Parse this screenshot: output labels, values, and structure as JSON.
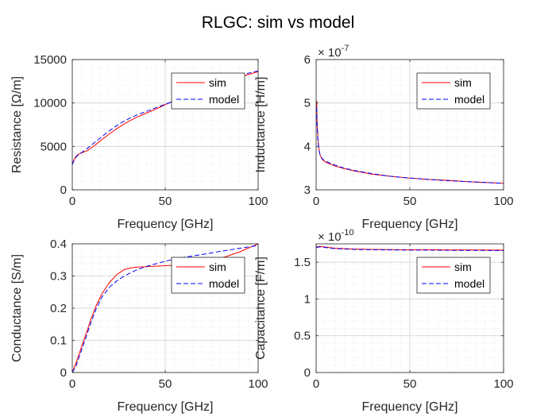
{
  "figure": {
    "title": "RLGC: sim vs model"
  },
  "colors": {
    "sim": "#ff0000",
    "model": "#0000ff",
    "grid": "#dfdfdf",
    "axis": "#262626"
  },
  "chart_data": [
    {
      "type": "line",
      "xlabel": "Frequency [GHz]",
      "ylabel": "Resistance [Ω/m]",
      "xlim": [
        0,
        100
      ],
      "ylim": [
        0,
        15000
      ],
      "xticks": [
        "0",
        "50",
        "100"
      ],
      "yticks": [
        "0",
        "5000",
        "10000",
        "15000"
      ],
      "grid": true,
      "minor_grid": true,
      "legend_position": "top-right",
      "series": [
        {
          "name": "sim",
          "style": "solid",
          "x": [
            0,
            1,
            2,
            3,
            5,
            8,
            12,
            16,
            20,
            25,
            30,
            35,
            40,
            45,
            50,
            55,
            60,
            65,
            70,
            75,
            80,
            85,
            90,
            95,
            100
          ],
          "y": [
            3000,
            3500,
            3850,
            4050,
            4250,
            4500,
            5100,
            5800,
            6450,
            7200,
            7850,
            8400,
            8850,
            9300,
            9800,
            10300,
            10700,
            11100,
            11500,
            11900,
            12300,
            12700,
            13000,
            13300,
            13600
          ]
        },
        {
          "name": "model",
          "style": "dashed",
          "x": [
            0,
            1,
            2,
            3,
            5,
            8,
            12,
            16,
            20,
            25,
            30,
            35,
            40,
            45,
            50,
            55,
            60,
            65,
            70,
            75,
            80,
            85,
            90,
            95,
            100
          ],
          "y": [
            2900,
            3400,
            3750,
            4000,
            4300,
            4750,
            5450,
            6150,
            6800,
            7550,
            8150,
            8650,
            9050,
            9450,
            9850,
            10250,
            10650,
            11050,
            11450,
            11850,
            12250,
            12700,
            13100,
            13450,
            13700
          ]
        }
      ]
    },
    {
      "type": "line",
      "xlabel": "Frequency [GHz]",
      "ylabel": "Inductance [H/m]",
      "xlim": [
        0,
        100
      ],
      "ylim": [
        3,
        6
      ],
      "exponent": "-7",
      "xticks": [
        "0",
        "50",
        "100"
      ],
      "yticks": [
        "3",
        "4",
        "5",
        "6"
      ],
      "grid": true,
      "minor_grid": true,
      "legend_position": "top-right",
      "series": [
        {
          "name": "sim",
          "style": "solid",
          "x": [
            0.3,
            0.5,
            1,
            1.5,
            2,
            3,
            4,
            5,
            7,
            10,
            15,
            20,
            30,
            40,
            50,
            60,
            70,
            80,
            90,
            100
          ],
          "y": [
            5.05,
            4.6,
            4.15,
            3.95,
            3.82,
            3.72,
            3.67,
            3.64,
            3.6,
            3.55,
            3.49,
            3.44,
            3.36,
            3.31,
            3.27,
            3.24,
            3.22,
            3.19,
            3.17,
            3.15
          ]
        },
        {
          "name": "model",
          "style": "dashed",
          "x": [
            0.3,
            0.5,
            1,
            1.5,
            2,
            3,
            4,
            5,
            7,
            10,
            15,
            20,
            30,
            40,
            50,
            60,
            70,
            80,
            90,
            100
          ],
          "y": [
            4.9,
            4.5,
            4.1,
            3.93,
            3.82,
            3.73,
            3.69,
            3.66,
            3.62,
            3.57,
            3.5,
            3.45,
            3.37,
            3.31,
            3.27,
            3.24,
            3.21,
            3.19,
            3.17,
            3.15
          ]
        }
      ]
    },
    {
      "type": "line",
      "xlabel": "Frequency [GHz]",
      "ylabel": "Conductance [S/m]",
      "xlim": [
        0,
        100
      ],
      "ylim": [
        0,
        0.4
      ],
      "xticks": [
        "0",
        "50",
        "100"
      ],
      "yticks": [
        "0",
        "0.1",
        "0.2",
        "0.3",
        "0.4"
      ],
      "grid": true,
      "minor_grid": true,
      "legend_position": "top-right",
      "series": [
        {
          "name": "sim",
          "style": "solid",
          "x": [
            0,
            2,
            5,
            8,
            10,
            13,
            16,
            20,
            24,
            28,
            32,
            36,
            40,
            50,
            60,
            70,
            80,
            90,
            100
          ],
          "y": [
            0,
            0.03,
            0.08,
            0.13,
            0.165,
            0.21,
            0.245,
            0.28,
            0.305,
            0.32,
            0.326,
            0.328,
            0.329,
            0.332,
            0.335,
            0.343,
            0.355,
            0.375,
            0.4
          ]
        },
        {
          "name": "model",
          "style": "dashed",
          "x": [
            0,
            2,
            5,
            8,
            10,
            13,
            16,
            20,
            24,
            28,
            32,
            36,
            40,
            50,
            60,
            70,
            80,
            90,
            100
          ],
          "y": [
            0,
            0.02,
            0.07,
            0.12,
            0.155,
            0.2,
            0.235,
            0.265,
            0.285,
            0.3,
            0.312,
            0.322,
            0.33,
            0.346,
            0.358,
            0.367,
            0.377,
            0.386,
            0.395
          ]
        }
      ]
    },
    {
      "type": "line",
      "xlabel": "Frequency [GHz]",
      "ylabel": "Capacitance [F/m]",
      "xlim": [
        0,
        100
      ],
      "ylim": [
        0,
        1.75
      ],
      "exponent": "-10",
      "xticks": [
        "0",
        "50",
        "100"
      ],
      "yticks": [
        "0",
        "0.5",
        "1",
        "1.5"
      ],
      "grid": true,
      "minor_grid": true,
      "legend_position": "top-right",
      "series": [
        {
          "name": "sim",
          "style": "solid",
          "x": [
            0,
            2,
            5,
            10,
            20,
            30,
            40,
            50,
            60,
            70,
            80,
            90,
            100
          ],
          "y": [
            1.71,
            1.715,
            1.705,
            1.69,
            1.68,
            1.675,
            1.672,
            1.67,
            1.67,
            1.668,
            1.667,
            1.666,
            1.665
          ]
        },
        {
          "name": "model",
          "style": "dashed",
          "x": [
            0,
            2,
            5,
            10,
            20,
            30,
            40,
            50,
            60,
            70,
            80,
            90,
            100
          ],
          "y": [
            1.7,
            1.71,
            1.7,
            1.685,
            1.675,
            1.67,
            1.667,
            1.665,
            1.664,
            1.662,
            1.661,
            1.66,
            1.658
          ]
        }
      ]
    }
  ]
}
